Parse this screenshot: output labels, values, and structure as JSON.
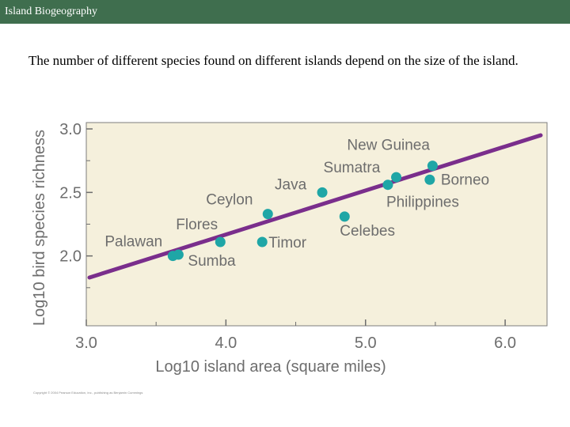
{
  "header": {
    "title": "Island Biogeography"
  },
  "intro": {
    "text": "The number of different species found on different islands depend on the size of the island."
  },
  "colors": {
    "plot_bg": "#f5f0dc",
    "line": "#7a2e8c",
    "point": "#1fa6a6",
    "label": "#6d6d6d"
  },
  "chart_data": {
    "type": "scatter",
    "title": "",
    "xlabel": "Log10 island area (square miles)",
    "ylabel": "Log10 bird species richness",
    "xlim": [
      3.0,
      6.3
    ],
    "ylim": [
      1.45,
      3.05
    ],
    "xticks": [
      "3.0",
      "4.0",
      "5.0",
      "6.0"
    ],
    "yticks": [
      "2.0",
      "2.5",
      "3.0"
    ],
    "points": [
      {
        "name": "Palawan",
        "x": 3.62,
        "y": 2.0
      },
      {
        "name": "Sumba",
        "x": 3.66,
        "y": 2.01
      },
      {
        "name": "Flores",
        "x": 3.96,
        "y": 2.11
      },
      {
        "name": "Timor",
        "x": 4.26,
        "y": 2.11
      },
      {
        "name": "Ceylon",
        "x": 4.3,
        "y": 2.33
      },
      {
        "name": "Java",
        "x": 4.69,
        "y": 2.5
      },
      {
        "name": "Celebes",
        "x": 4.85,
        "y": 2.31
      },
      {
        "name": "Philippines",
        "x": 5.16,
        "y": 2.56
      },
      {
        "name": "Sumatra",
        "x": 5.22,
        "y": 2.62
      },
      {
        "name": "Borneo",
        "x": 5.46,
        "y": 2.6
      },
      {
        "name": "New Guinea",
        "x": 5.48,
        "y": 2.71
      }
    ],
    "trendline": {
      "x": [
        3.0,
        6.3
      ],
      "y": [
        1.83,
        2.95
      ]
    },
    "credit": "Copyright © 2004 Pearson Education, Inc., publishing as Benjamin Cummings"
  }
}
